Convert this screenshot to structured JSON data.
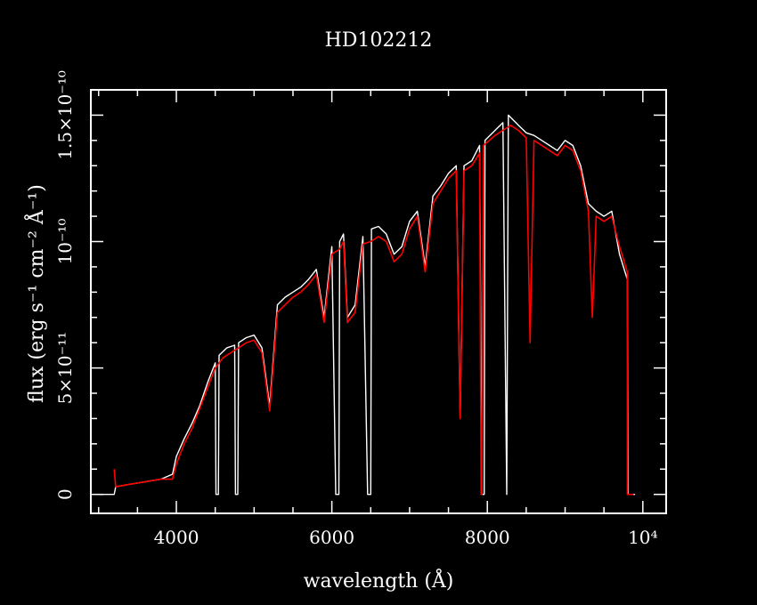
{
  "chart_data": {
    "type": "line",
    "title": "HD102212",
    "xlabel": "wavelength (Å)",
    "ylabel": "flux (erg s⁻¹ cm⁻² Å⁻¹)",
    "xlim": [
      2900,
      10300
    ],
    "ylim": [
      -7.5e-12,
      1.6e-10
    ],
    "x_ticks": [
      {
        "value": 4000,
        "label": "4000"
      },
      {
        "value": 6000,
        "label": "6000"
      },
      {
        "value": 8000,
        "label": "8000"
      },
      {
        "value": 10000,
        "label": "10⁴"
      }
    ],
    "y_ticks": [
      {
        "value": 0,
        "label": "0"
      },
      {
        "value": 5e-11,
        "label": "5×10⁻¹¹"
      },
      {
        "value": 1e-10,
        "label": "10⁻¹⁰"
      },
      {
        "value": 1.5e-10,
        "label": "1.5×10⁻¹⁰"
      }
    ],
    "grid": false,
    "legend": "none",
    "colors": {
      "background": "#000000",
      "frame": "#ffffff",
      "series_1": "#ffffff",
      "series_2": "#ff0000"
    },
    "series": [
      {
        "color": "#ffffff",
        "points": [
          [
            3000,
            0
          ],
          [
            3200,
            0
          ],
          [
            3220,
            3e-12
          ],
          [
            3400,
            4e-12
          ],
          [
            3600,
            5e-12
          ],
          [
            3800,
            6e-12
          ],
          [
            3950,
            8e-12
          ],
          [
            4000,
            1.5e-11
          ],
          [
            4100,
            2.2e-11
          ],
          [
            4200,
            2.8e-11
          ],
          [
            4300,
            3.5e-11
          ],
          [
            4400,
            4.4e-11
          ],
          [
            4500,
            5.2e-11
          ],
          [
            4510,
            0
          ],
          [
            4540,
            0
          ],
          [
            4550,
            5.5e-11
          ],
          [
            4650,
            5.8e-11
          ],
          [
            4750,
            5.9e-11
          ],
          [
            4760,
            0
          ],
          [
            4790,
            0
          ],
          [
            4800,
            6e-11
          ],
          [
            4900,
            6.2e-11
          ],
          [
            5000,
            6.3e-11
          ],
          [
            5100,
            5.8e-11
          ],
          [
            5200,
            3.5e-11
          ],
          [
            5300,
            7.5e-11
          ],
          [
            5400,
            7.8e-11
          ],
          [
            5500,
            8e-11
          ],
          [
            5600,
            8.2e-11
          ],
          [
            5700,
            8.5e-11
          ],
          [
            5800,
            8.9e-11
          ],
          [
            5900,
            7e-11
          ],
          [
            6000,
            9.8e-11
          ],
          [
            6050,
            0
          ],
          [
            6090,
            0
          ],
          [
            6100,
            1e-10
          ],
          [
            6150,
            1.03e-10
          ],
          [
            6200,
            7e-11
          ],
          [
            6300,
            7.5e-11
          ],
          [
            6400,
            1.02e-10
          ],
          [
            6460,
            0
          ],
          [
            6500,
            0
          ],
          [
            6510,
            1.05e-10
          ],
          [
            6600,
            1.06e-10
          ],
          [
            6700,
            1.03e-10
          ],
          [
            6800,
            9.5e-11
          ],
          [
            6900,
            9.8e-11
          ],
          [
            7000,
            1.08e-10
          ],
          [
            7100,
            1.12e-10
          ],
          [
            7200,
            9e-11
          ],
          [
            7300,
            1.18e-10
          ],
          [
            7400,
            1.22e-10
          ],
          [
            7500,
            1.27e-10
          ],
          [
            7600,
            1.3e-10
          ],
          [
            7650,
            3e-11
          ],
          [
            7700,
            1.3e-10
          ],
          [
            7800,
            1.32e-10
          ],
          [
            7900,
            1.38e-10
          ],
          [
            7930,
            0
          ],
          [
            7960,
            0
          ],
          [
            7970,
            1.4e-10
          ],
          [
            8100,
            1.44e-10
          ],
          [
            8200,
            1.47e-10
          ],
          [
            8250,
            0
          ],
          [
            8270,
            1.5e-10
          ],
          [
            8400,
            1.46e-10
          ],
          [
            8500,
            1.43e-10
          ],
          [
            8600,
            1.42e-10
          ],
          [
            8700,
            1.4e-10
          ],
          [
            8800,
            1.38e-10
          ],
          [
            8900,
            1.36e-10
          ],
          [
            9000,
            1.4e-10
          ],
          [
            9100,
            1.38e-10
          ],
          [
            9200,
            1.3e-10
          ],
          [
            9300,
            1.15e-10
          ],
          [
            9400,
            1.12e-10
          ],
          [
            9500,
            1.1e-10
          ],
          [
            9600,
            1.12e-10
          ],
          [
            9700,
            9.5e-11
          ],
          [
            9800,
            8.5e-11
          ],
          [
            9810,
            0
          ],
          [
            9900,
            0
          ]
        ]
      },
      {
        "color": "#ff0000",
        "points": [
          [
            3200,
            1e-11
          ],
          [
            3220,
            3e-12
          ],
          [
            3400,
            4e-12
          ],
          [
            3600,
            5e-12
          ],
          [
            3800,
            6e-12
          ],
          [
            3950,
            6e-12
          ],
          [
            4000,
            1.2e-11
          ],
          [
            4100,
            2e-11
          ],
          [
            4200,
            2.6e-11
          ],
          [
            4300,
            3.4e-11
          ],
          [
            4400,
            4.2e-11
          ],
          [
            4500,
            5e-11
          ],
          [
            4600,
            5.4e-11
          ],
          [
            4700,
            5.6e-11
          ],
          [
            4800,
            5.8e-11
          ],
          [
            4900,
            6e-11
          ],
          [
            5000,
            6.1e-11
          ],
          [
            5100,
            5.6e-11
          ],
          [
            5200,
            3.3e-11
          ],
          [
            5300,
            7.2e-11
          ],
          [
            5400,
            7.5e-11
          ],
          [
            5500,
            7.8e-11
          ],
          [
            5600,
            8e-11
          ],
          [
            5700,
            8.3e-11
          ],
          [
            5800,
            8.7e-11
          ],
          [
            5900,
            6.8e-11
          ],
          [
            6000,
            9.5e-11
          ],
          [
            6100,
            9.7e-11
          ],
          [
            6150,
            1e-10
          ],
          [
            6200,
            6.8e-11
          ],
          [
            6300,
            7.2e-11
          ],
          [
            6400,
            9.9e-11
          ],
          [
            6500,
            1e-10
          ],
          [
            6600,
            1.02e-10
          ],
          [
            6700,
            1e-10
          ],
          [
            6800,
            9.2e-11
          ],
          [
            6900,
            9.5e-11
          ],
          [
            7000,
            1.05e-10
          ],
          [
            7100,
            1.1e-10
          ],
          [
            7200,
            8.8e-11
          ],
          [
            7300,
            1.15e-10
          ],
          [
            7400,
            1.2e-10
          ],
          [
            7500,
            1.25e-10
          ],
          [
            7600,
            1.28e-10
          ],
          [
            7650,
            3e-11
          ],
          [
            7700,
            1.28e-10
          ],
          [
            7800,
            1.3e-10
          ],
          [
            7900,
            1.35e-10
          ],
          [
            7920,
            0
          ],
          [
            7930,
            0
          ],
          [
            7950,
            1.38e-10
          ],
          [
            8100,
            1.42e-10
          ],
          [
            8200,
            1.44e-10
          ],
          [
            8300,
            1.46e-10
          ],
          [
            8400,
            1.44e-10
          ],
          [
            8500,
            1.41e-10
          ],
          [
            8550,
            6e-11
          ],
          [
            8600,
            1.4e-10
          ],
          [
            8700,
            1.38e-10
          ],
          [
            8800,
            1.36e-10
          ],
          [
            8900,
            1.34e-10
          ],
          [
            9000,
            1.38e-10
          ],
          [
            9100,
            1.36e-10
          ],
          [
            9200,
            1.28e-10
          ],
          [
            9300,
            1.12e-10
          ],
          [
            9350,
            7e-11
          ],
          [
            9400,
            1.1e-10
          ],
          [
            9500,
            1.08e-10
          ],
          [
            9600,
            1.1e-10
          ],
          [
            9700,
            9.8e-11
          ],
          [
            9800,
            8.8e-11
          ],
          [
            9800,
            0
          ],
          [
            9880,
            0
          ]
        ]
      }
    ]
  }
}
